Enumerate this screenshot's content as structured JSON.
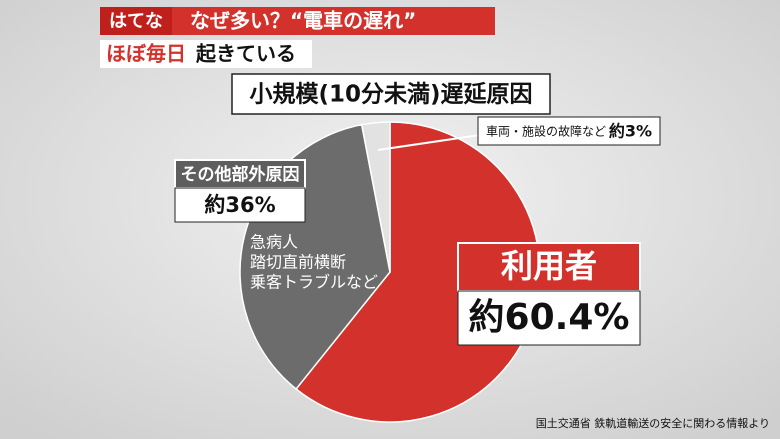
{
  "chart_data": {
    "type": "pie",
    "header": {
      "tag": "はてな",
      "title": "なぜ多い？“電車の遅れ”"
    },
    "subtitle": {
      "highlight": "ほぼ毎日",
      "rest": "起きている"
    },
    "title": "小規模(10分未満)遅延原因",
    "categories": [
      "利用者",
      "その他部外原因",
      "車両・施設の故障など"
    ],
    "values": [
      60.4,
      36,
      3
    ],
    "value_labels": [
      "約60.4%",
      "約36%",
      "約3%"
    ],
    "colors": [
      "#d3322c",
      "#6c6c6c",
      "#e2e2e2"
    ],
    "annotations": [
      "急病人",
      "踏切直前横断",
      "乗客トラブルなど"
    ],
    "source": "国土交通省 鉄軌道輸送の安全に関わる情報より"
  }
}
